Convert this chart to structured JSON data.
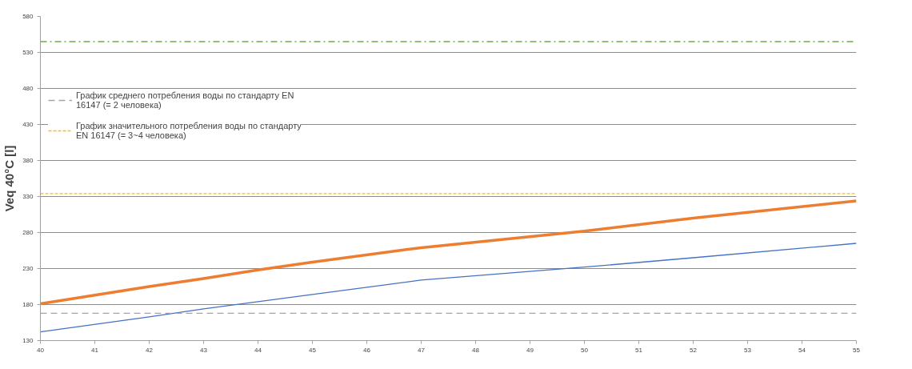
{
  "chart_data": {
    "type": "line",
    "ylabel": "Veq 40°C [l]",
    "x": [
      40,
      42,
      43,
      44,
      45,
      47,
      50,
      52,
      55
    ],
    "series": [
      {
        "color": "#4472c4",
        "values": [
          142,
          163,
          174,
          184,
          194,
          214,
          232,
          245,
          265
        ]
      },
      {
        "color": "#ed7d31",
        "values": [
          181,
          205,
          216,
          228,
          239,
          259,
          282,
          300,
          324
        ]
      },
      {
        "name": "График среднего потребления воды по стандарту EN 16147 (= 2 человека)",
        "color": "#a5a5a5",
        "values": [
          168,
          168,
          168,
          168,
          168,
          168,
          168,
          168,
          168
        ],
        "line_style": "dashed"
      },
      {
        "name": "График значительного потребления воды по стандарту EN 16147 (= 3~4 человека)",
        "color": "#ffc000",
        "values": [
          334,
          334,
          334,
          334,
          334,
          334,
          334,
          334,
          334
        ],
        "line_style": "dotted"
      }
    ],
    "xlim": [
      40,
      55
    ],
    "xticks": [
      40,
      41,
      42,
      43,
      44,
      45,
      46,
      47,
      48,
      49,
      50,
      51,
      52,
      53,
      54,
      55
    ],
    "ylim": [
      130,
      580
    ],
    "yticks": [
      130,
      180,
      230,
      280,
      330,
      380,
      430,
      480,
      530,
      580
    ],
    "ref_lines": [
      {
        "axis": "y",
        "value": 545,
        "color": "#70ad47",
        "line_style": "dashdot"
      }
    ],
    "grid": "y",
    "legend": "top left",
    "marker": "none"
  }
}
